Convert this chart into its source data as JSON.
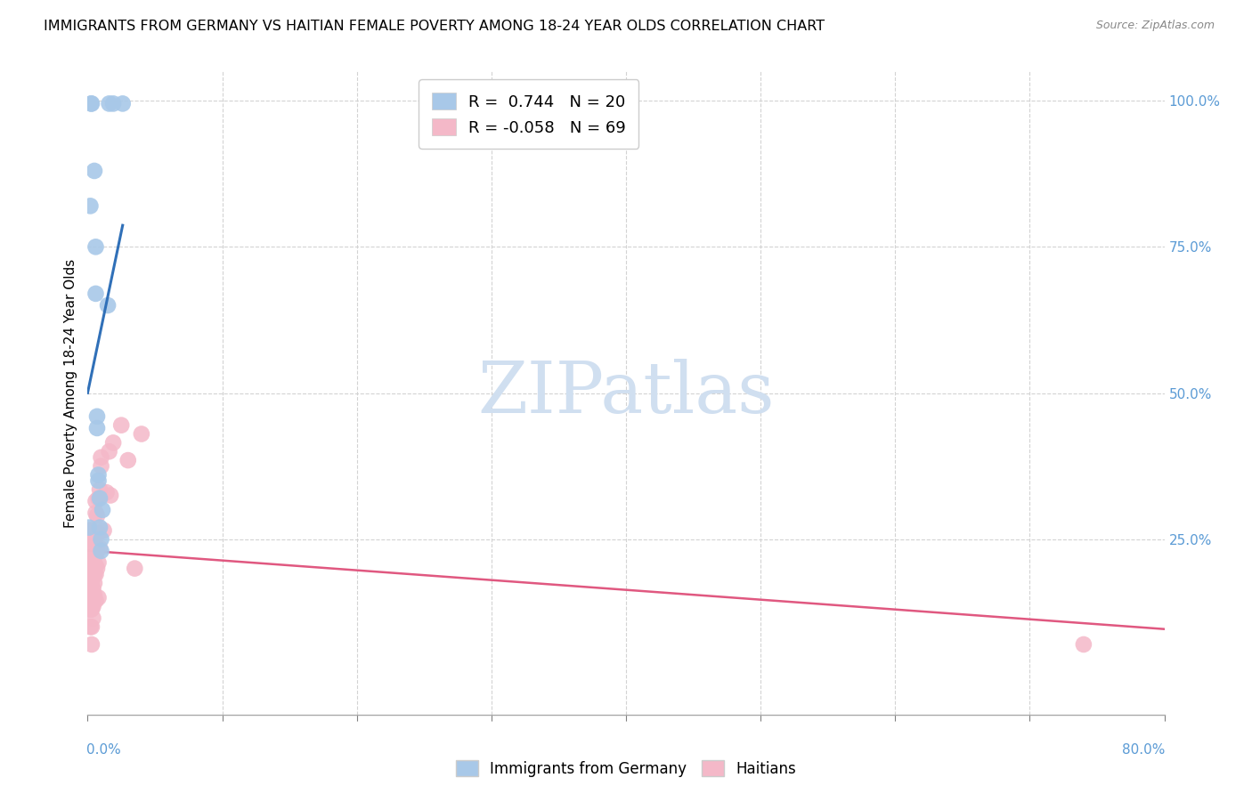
{
  "title": "IMMIGRANTS FROM GERMANY VS HAITIAN FEMALE POVERTY AMONG 18-24 YEAR OLDS CORRELATION CHART",
  "source": "Source: ZipAtlas.com",
  "ylabel": "Female Poverty Among 18-24 Year Olds",
  "right_yticklabels": [
    "25.0%",
    "50.0%",
    "75.0%",
    "100.0%"
  ],
  "right_ytick_vals": [
    0.25,
    0.5,
    0.75,
    1.0
  ],
  "legend_blue_label": "Immigrants from Germany",
  "legend_pink_label": "Haitians",
  "legend_R_blue": "R =  0.744   N = 20",
  "legend_R_pink": "R = -0.058   N = 69",
  "blue_color": "#a8c8e8",
  "pink_color": "#f4b8c8",
  "blue_line_color": "#3070b8",
  "pink_line_color": "#e05880",
  "watermark_text": "ZIPatlas",
  "watermark_color": "#d0dff0",
  "xlim": [
    0.0,
    0.8
  ],
  "ylim": [
    -0.05,
    1.05
  ],
  "blue_dots": [
    [
      0.001,
      0.27
    ],
    [
      0.002,
      0.82
    ],
    [
      0.0025,
      0.995
    ],
    [
      0.003,
      0.995
    ],
    [
      0.005,
      0.88
    ],
    [
      0.006,
      0.75
    ],
    [
      0.006,
      0.67
    ],
    [
      0.007,
      0.44
    ],
    [
      0.007,
      0.46
    ],
    [
      0.008,
      0.35
    ],
    [
      0.008,
      0.36
    ],
    [
      0.009,
      0.27
    ],
    [
      0.009,
      0.32
    ],
    [
      0.01,
      0.25
    ],
    [
      0.01,
      0.23
    ],
    [
      0.011,
      0.3
    ],
    [
      0.015,
      0.65
    ],
    [
      0.016,
      0.995
    ],
    [
      0.019,
      0.995
    ],
    [
      0.026,
      0.995
    ]
  ],
  "pink_dots": [
    [
      0.001,
      0.265
    ],
    [
      0.001,
      0.24
    ],
    [
      0.001,
      0.22
    ],
    [
      0.001,
      0.185
    ],
    [
      0.0015,
      0.255
    ],
    [
      0.0015,
      0.235
    ],
    [
      0.0015,
      0.215
    ],
    [
      0.002,
      0.265
    ],
    [
      0.002,
      0.245
    ],
    [
      0.002,
      0.225
    ],
    [
      0.002,
      0.205
    ],
    [
      0.002,
      0.19
    ],
    [
      0.002,
      0.175
    ],
    [
      0.002,
      0.155
    ],
    [
      0.002,
      0.13
    ],
    [
      0.002,
      0.1
    ],
    [
      0.0025,
      0.19
    ],
    [
      0.0025,
      0.175
    ],
    [
      0.003,
      0.265
    ],
    [
      0.003,
      0.245
    ],
    [
      0.003,
      0.225
    ],
    [
      0.003,
      0.205
    ],
    [
      0.003,
      0.19
    ],
    [
      0.003,
      0.175
    ],
    [
      0.003,
      0.155
    ],
    [
      0.003,
      0.13
    ],
    [
      0.003,
      0.1
    ],
    [
      0.003,
      0.07
    ],
    [
      0.004,
      0.255
    ],
    [
      0.004,
      0.235
    ],
    [
      0.004,
      0.215
    ],
    [
      0.004,
      0.2
    ],
    [
      0.004,
      0.185
    ],
    [
      0.004,
      0.165
    ],
    [
      0.004,
      0.15
    ],
    [
      0.004,
      0.135
    ],
    [
      0.004,
      0.115
    ],
    [
      0.005,
      0.25
    ],
    [
      0.005,
      0.235
    ],
    [
      0.005,
      0.22
    ],
    [
      0.005,
      0.205
    ],
    [
      0.005,
      0.19
    ],
    [
      0.005,
      0.175
    ],
    [
      0.005,
      0.155
    ],
    [
      0.006,
      0.315
    ],
    [
      0.006,
      0.295
    ],
    [
      0.006,
      0.225
    ],
    [
      0.006,
      0.205
    ],
    [
      0.006,
      0.19
    ],
    [
      0.006,
      0.145
    ],
    [
      0.007,
      0.29
    ],
    [
      0.007,
      0.235
    ],
    [
      0.007,
      0.2
    ],
    [
      0.008,
      0.32
    ],
    [
      0.008,
      0.26
    ],
    [
      0.008,
      0.21
    ],
    [
      0.008,
      0.15
    ],
    [
      0.009,
      0.335
    ],
    [
      0.009,
      0.235
    ],
    [
      0.01,
      0.39
    ],
    [
      0.01,
      0.375
    ],
    [
      0.012,
      0.265
    ],
    [
      0.014,
      0.33
    ],
    [
      0.016,
      0.4
    ],
    [
      0.017,
      0.325
    ],
    [
      0.019,
      0.415
    ],
    [
      0.025,
      0.445
    ],
    [
      0.03,
      0.385
    ],
    [
      0.035,
      0.2
    ],
    [
      0.04,
      0.43
    ],
    [
      0.74,
      0.07
    ]
  ],
  "blue_regline": [
    0.0,
    0.026
  ],
  "pink_regline": [
    0.0,
    0.8
  ]
}
